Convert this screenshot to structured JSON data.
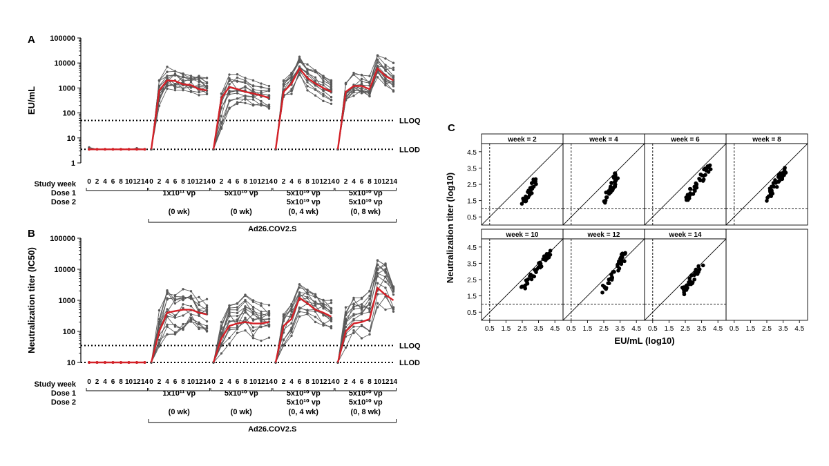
{
  "chart_data": [
    {
      "id": "A",
      "type": "line",
      "panel_label": "A",
      "ylabel": "EU/mL",
      "yscale": "log",
      "ylim": [
        1,
        100000
      ],
      "yticks": [
        "1",
        "10",
        "100",
        "1000",
        "10000",
        "100000"
      ],
      "reference_lines": [
        {
          "label": "LLOQ",
          "value": 50
        },
        {
          "label": "LLOD",
          "value": 3.5
        }
      ],
      "xaxis_title": "Study week",
      "week_ticks": [
        "0",
        "2",
        "4",
        "6",
        "8",
        "10",
        "12",
        "14"
      ],
      "row_labels": [
        "Dose 1",
        "Dose 2"
      ],
      "groups": [
        {
          "dose1": "",
          "dose2": "",
          "schedule": "",
          "median": [
            3.5,
            3.5,
            3.5,
            3.5,
            3.5,
            3.5,
            3.5,
            3.5
          ],
          "low": [
            3.5,
            3.5,
            3.5,
            3.5,
            3.5,
            3.5,
            3.5,
            3.5
          ],
          "high": [
            4.5,
            3.5,
            3.5,
            3.5,
            3.5,
            3.5,
            4.0,
            3.5
          ]
        },
        {
          "dose1": "1x10¹¹ vp",
          "dose2": "",
          "schedule": "(0 wk)",
          "median": [
            3.5,
            800,
            2000,
            1900,
            1400,
            1300,
            900,
            800
          ],
          "low": [
            3.5,
            100,
            300,
            400,
            400,
            400,
            300,
            300
          ],
          "high": [
            3.5,
            2000,
            7000,
            5000,
            5000,
            4000,
            3000,
            2500
          ]
        },
        {
          "dose1": "5x10¹⁰ vp",
          "dose2": "",
          "schedule": "(0 wk)",
          "median": [
            3.5,
            400,
            1100,
            900,
            700,
            600,
            500,
            400
          ],
          "low": [
            3.5,
            20,
            150,
            200,
            250,
            200,
            200,
            150
          ],
          "high": [
            3.5,
            1200,
            4500,
            3500,
            2500,
            2000,
            1500,
            1200
          ]
        },
        {
          "dose1": "5x10¹⁰ vp",
          "dose2": "5x10¹⁰ vp",
          "schedule": "(0, 4 wk)",
          "median": [
            3.5,
            700,
            1500,
            6000,
            2500,
            1500,
            1000,
            700
          ],
          "low": [
            3.5,
            300,
            500,
            2500,
            800,
            500,
            300,
            200
          ],
          "high": [
            3.5,
            2000,
            4000,
            18000,
            9000,
            5000,
            3000,
            2000
          ]
        },
        {
          "dose1": "5x10¹⁰ vp",
          "dose2": "5x10¹⁰ vp",
          "schedule": "(0, 8 wk)",
          "median": [
            3.5,
            700,
            1200,
            1200,
            900,
            6000,
            3000,
            2000
          ],
          "low": [
            3.5,
            200,
            400,
            400,
            300,
            2000,
            800,
            600
          ],
          "high": [
            3.5,
            1800,
            4000,
            4000,
            3000,
            30000,
            15000,
            10000
          ]
        }
      ],
      "bracket_label": "Ad26.COV2.S"
    },
    {
      "id": "B",
      "type": "line",
      "panel_label": "B",
      "ylabel": "Neutralization titer (IC50)",
      "yscale": "log",
      "ylim": [
        10,
        100000
      ],
      "yticks": [
        "10",
        "100",
        "1000",
        "10000",
        "100000"
      ],
      "reference_lines": [
        {
          "label": "LLOQ",
          "value": 35
        },
        {
          "label": "LLOD",
          "value": 10
        }
      ],
      "xaxis_title": "Study week",
      "week_ticks": [
        "0",
        "2",
        "4",
        "6",
        "8",
        "10",
        "12",
        "14"
      ],
      "row_labels": [
        "Dose 1",
        "Dose 2"
      ],
      "groups": [
        {
          "dose1": "",
          "dose2": "",
          "schedule": "",
          "median": [
            10,
            10,
            10,
            10,
            10,
            10,
            10,
            10
          ],
          "low": [
            10,
            10,
            10,
            10,
            10,
            10,
            10,
            10
          ],
          "high": [
            10,
            10,
            10,
            10,
            10,
            10,
            10,
            10
          ]
        },
        {
          "dose1": "1x10¹¹ vp",
          "dose2": "",
          "schedule": "(0 wk)",
          "median": [
            10,
            100,
            400,
            450,
            500,
            500,
            400,
            350
          ],
          "low": [
            10,
            30,
            80,
            70,
            100,
            150,
            120,
            100
          ],
          "high": [
            10,
            500,
            3000,
            2500,
            3000,
            2500,
            1500,
            1200
          ]
        },
        {
          "dose1": "5x10¹⁰ vp",
          "dose2": "",
          "schedule": "(0 wk)",
          "median": [
            10,
            60,
            150,
            180,
            200,
            180,
            180,
            200
          ],
          "low": [
            10,
            15,
            40,
            50,
            60,
            50,
            50,
            60
          ],
          "high": [
            10,
            200,
            1000,
            800,
            1500,
            1000,
            800,
            700
          ]
        },
        {
          "dose1": "5x10¹⁰ vp",
          "dose2": "5x10¹⁰ vp",
          "schedule": "(0, 4 wk)",
          "median": [
            10,
            150,
            250,
            1200,
            800,
            500,
            400,
            300
          ],
          "low": [
            10,
            30,
            60,
            300,
            300,
            200,
            150,
            120
          ],
          "high": [
            10,
            500,
            1000,
            4000,
            3000,
            2000,
            1200,
            1000
          ]
        },
        {
          "dose1": "5x10¹⁰ vp",
          "dose2": "5x10¹⁰ vp",
          "schedule": "(0, 8 wk)",
          "median": [
            10,
            100,
            180,
            200,
            250,
            2500,
            1500,
            1000
          ],
          "low": [
            10,
            30,
            60,
            60,
            80,
            600,
            500,
            400
          ],
          "high": [
            10,
            600,
            1200,
            1200,
            2000,
            20000,
            18000,
            3000
          ]
        }
      ],
      "bracket_label": "Ad26.COV2.S"
    },
    {
      "id": "C",
      "type": "scatter",
      "panel_label": "C",
      "xlabel": "EU/mL  (log10)",
      "ylabel": "Neutralization titer  (log10)",
      "xlim": [
        0.0,
        5.0
      ],
      "ylim": [
        0.0,
        5.0
      ],
      "xticks": [
        "0.5",
        "1.5",
        "2.5",
        "3.5",
        "4.5"
      ],
      "yticks": [
        "0.5",
        "1.5",
        "2.5",
        "3.5",
        "4.5"
      ],
      "threshold_x": 0.5,
      "threshold_y": 1.0,
      "facets": [
        {
          "title": "week = 2",
          "xrange": [
            2.5,
            3.4
          ],
          "yrange": [
            1.3,
            2.8
          ],
          "n": 40
        },
        {
          "title": "week = 4",
          "xrange": [
            2.6,
            3.3
          ],
          "yrange": [
            1.4,
            3.1
          ],
          "n": 40
        },
        {
          "title": "week = 6",
          "xrange": [
            2.6,
            4.0
          ],
          "yrange": [
            1.6,
            3.6
          ],
          "n": 40
        },
        {
          "title": "week = 8",
          "xrange": [
            2.5,
            3.6
          ],
          "yrange": [
            1.6,
            3.4
          ],
          "n": 40
        },
        {
          "title": "week = 10",
          "xrange": [
            2.4,
            4.2
          ],
          "yrange": [
            1.8,
            4.2
          ],
          "n": 40
        },
        {
          "title": "week = 12",
          "xrange": [
            2.4,
            3.9
          ],
          "yrange": [
            1.7,
            4.2
          ],
          "n": 40
        },
        {
          "title": "week = 14",
          "xrange": [
            2.3,
            3.5
          ],
          "yrange": [
            1.7,
            3.4
          ],
          "n": 40
        }
      ]
    }
  ],
  "colors": {
    "individual": "#595959",
    "median": "#d42027",
    "axis": "#000000"
  }
}
